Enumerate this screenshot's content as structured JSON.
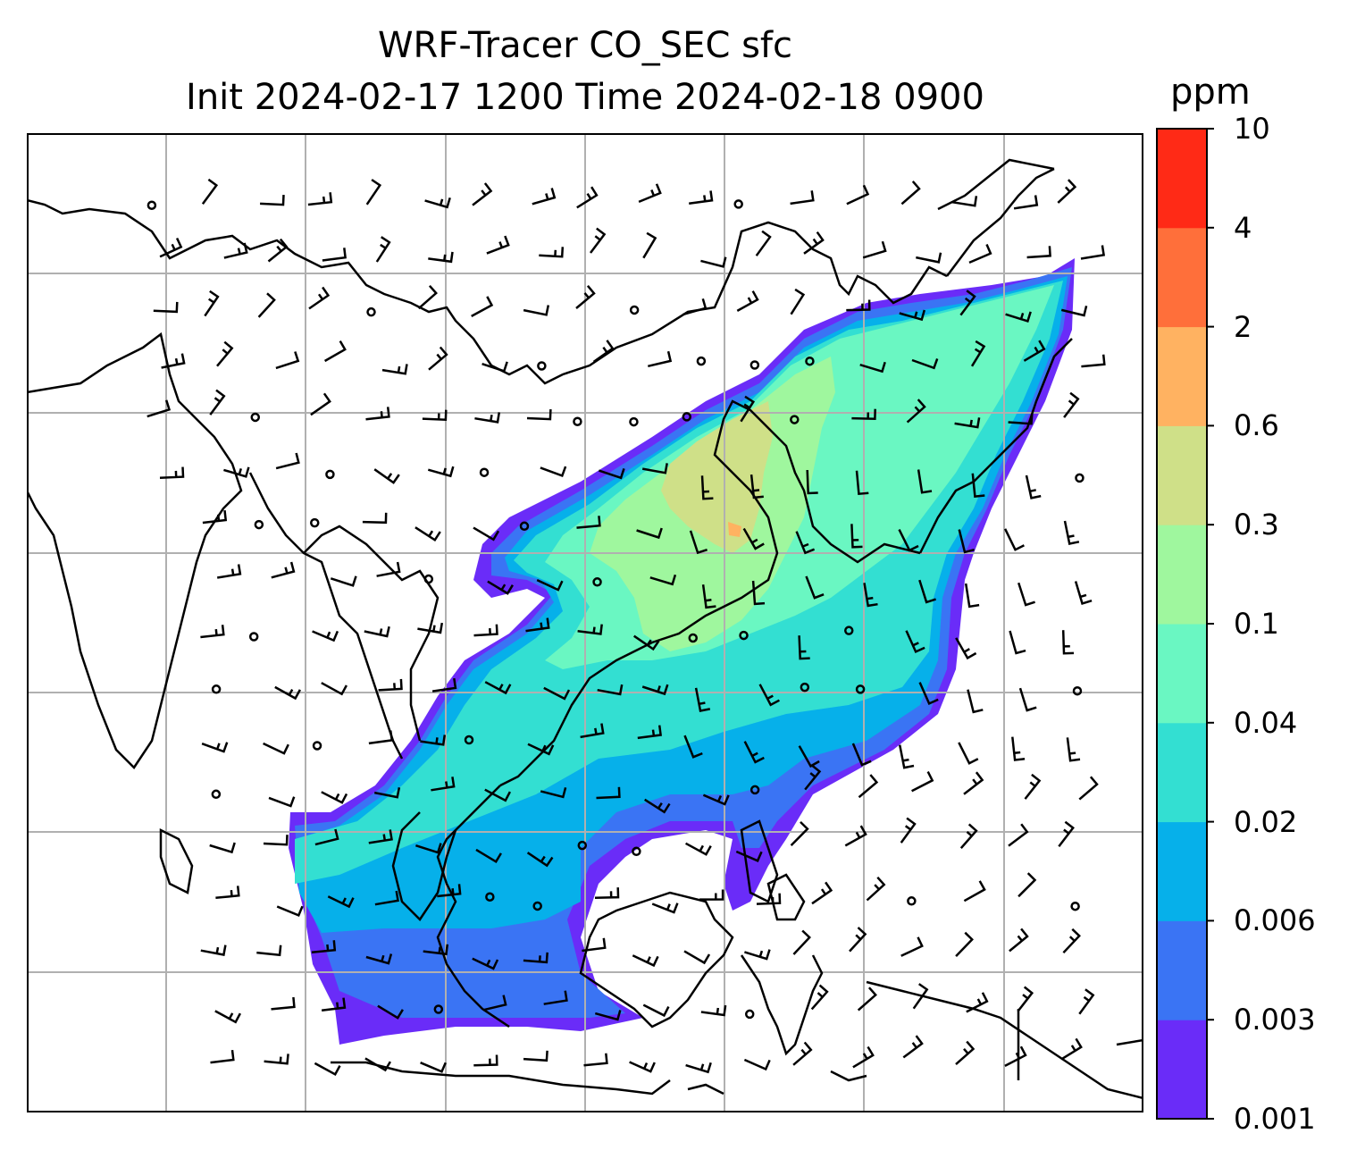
{
  "title_line1": "WRF-Tracer CO_SEC sfc",
  "title_line2": "Init 2024-02-17 1200 Time 2024-02-18 0900",
  "colorbar": {
    "unit": "ppm",
    "tick_labels": [
      "0.001",
      "0.003",
      "0.006",
      "0.02",
      "0.04",
      "0.1",
      "0.3",
      "0.6",
      "2",
      "4",
      "10"
    ],
    "colors": [
      "#6a2cf8",
      "#3a74f4",
      "#06b0ea",
      "#33dfd2",
      "#6af7c2",
      "#9ff79e",
      "#cfe088",
      "#ffb261",
      "#ff6f3a",
      "#ff2a16"
    ]
  },
  "map": {
    "frame_color": "#000000",
    "gridline_color": "#b0b0b0",
    "coastline_color": "#000000",
    "wind_barb_color": "#000000"
  }
}
